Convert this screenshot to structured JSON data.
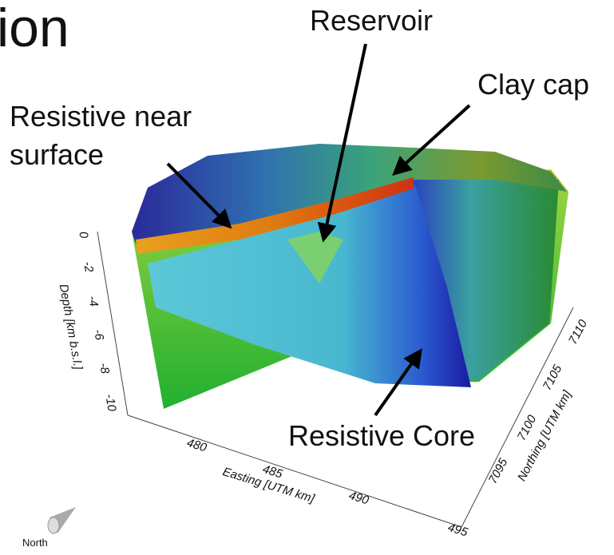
{
  "title": "ion",
  "annotations": {
    "reservoir": "Reservoir",
    "clay_cap": "Clay cap",
    "near_surface": [
      "Resistive near",
      "surface"
    ],
    "core": "Resistive Core"
  },
  "axes": {
    "depth": {
      "label": "Depth [km b.s.l.]",
      "ticks": [
        0,
        -2,
        -4,
        -6,
        -8,
        -10
      ]
    },
    "easting": {
      "label": "Easting [UTM km]",
      "ticks": [
        480,
        485,
        490,
        495
      ]
    },
    "northing": {
      "label": "Northing [UTM km]",
      "ticks": [
        7095,
        7100,
        7105,
        7110
      ]
    }
  },
  "compass": "North"
}
